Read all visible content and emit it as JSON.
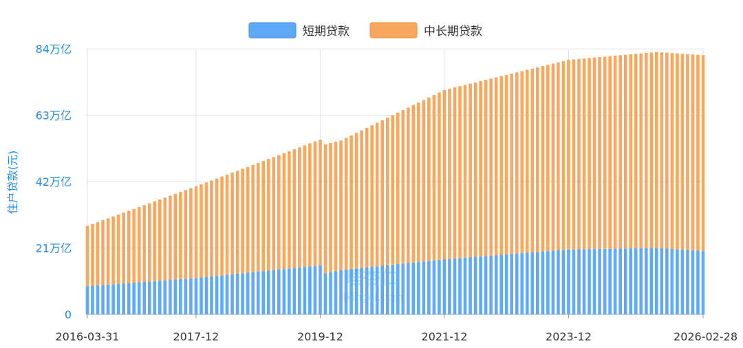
{
  "chart_data": {
    "type": "bar",
    "stacked": true,
    "ylabel": "住户贷款(元)",
    "y_unit": "万亿",
    "ylim": [
      0,
      84
    ],
    "yticks": [
      {
        "value": 0,
        "label": "0"
      },
      {
        "value": 21,
        "label": "21万亿"
      },
      {
        "value": 42,
        "label": "42万亿"
      },
      {
        "value": 63,
        "label": "63万亿"
      },
      {
        "value": 84,
        "label": "84万亿"
      }
    ],
    "xticks": [
      "2016-03-31",
      "2017-12",
      "2019-12",
      "2021-12",
      "2023-12",
      "2026-02-28"
    ],
    "legend_position": "top-center",
    "grid": true,
    "series": [
      {
        "name": "短期贷款",
        "color": "#5eaaf7",
        "border": "#3a8de0"
      },
      {
        "name": "中长期贷款",
        "color": "#f8a85e",
        "border": "#ef8f35"
      }
    ],
    "anchors": [
      {
        "month": 0,
        "short": 8.9,
        "total": 28.0
      },
      {
        "month": 21,
        "short": 11.5,
        "total": 40.5
      },
      {
        "month": 45,
        "short": 15.5,
        "total": 55.3
      },
      {
        "month": 46,
        "short": 13.0,
        "total": 53.8
      },
      {
        "month": 49,
        "short": 14.0,
        "total": 55.0
      },
      {
        "month": 69,
        "short": 17.4,
        "total": 71.0
      },
      {
        "month": 93,
        "short": 20.5,
        "total": 80.5
      },
      {
        "month": 110,
        "short": 21.0,
        "total": 83.0
      },
      {
        "month": 119,
        "short": 20.0,
        "total": 82.0
      }
    ],
    "watermark": {
      "line1": "理杏仁",
      "line2": "lixinger.com"
    }
  }
}
